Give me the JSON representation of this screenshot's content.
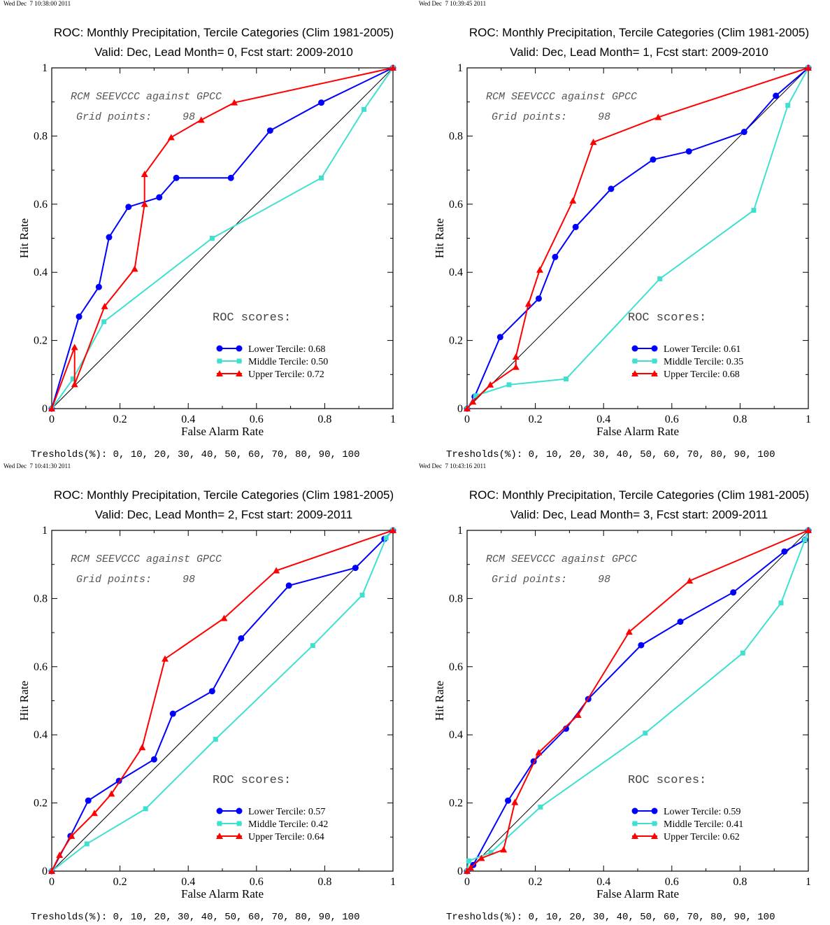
{
  "figure": {
    "threshold_text": "Tresholds(%): 0, 10, 20, 30, 40, 50, 60, 70, 80, 90, 100",
    "dataset_text": "RCM SEEVCCC against GPCC",
    "grid_label": "Grid points:",
    "grid_value": "98",
    "roc_scores_label": "ROC scores:",
    "series_colors": {
      "Lower Tercile": "#0000ff",
      "Middle Tercile": "#40e0d0",
      "Upper Tercile": "#ff0000"
    },
    "series_markers": {
      "Lower Tercile": "circle",
      "Middle Tercile": "square",
      "Upper Tercile": "triangle"
    }
  },
  "chart_data": [
    {
      "type": "line",
      "timestamp": "Wed Dec  7 10:38:00 2011",
      "title": "ROC: Monthly Precipitation, Tercile Categories (Clim 1981-2005)",
      "subtitle": "Valid: Dec, Lead Month= 0, Fcst start: 2009-2010",
      "xlabel": "False Alarm Rate",
      "ylabel": "Hit Rate",
      "xlim": [
        0,
        1
      ],
      "ylim": [
        0,
        1
      ],
      "xticks": [
        "0",
        "0.2",
        "0.4",
        "0.6",
        "0.8",
        "1"
      ],
      "yticks": [
        "0",
        "0.2",
        "0.4",
        "0.6",
        "0.8",
        "1"
      ],
      "grid": false,
      "diagonal": true,
      "legend_placement": "lower-right",
      "series": [
        {
          "name": "Lower Tercile",
          "score": "0.68",
          "points": [
            [
              1,
              1
            ],
            [
              0.79,
              0.898
            ],
            [
              0.64,
              0.816
            ],
            [
              0.525,
              0.677
            ],
            [
              0.365,
              0.677
            ],
            [
              0.315,
              0.62
            ],
            [
              0.225,
              0.592
            ],
            [
              0.168,
              0.503
            ],
            [
              0.138,
              0.357
            ],
            [
              0.08,
              0.27
            ],
            [
              0,
              0
            ]
          ]
        },
        {
          "name": "Middle Tercile",
          "score": "0.50",
          "points": [
            [
              1,
              1
            ],
            [
              0.915,
              0.878
            ],
            [
              0.79,
              0.677
            ],
            [
              0.47,
              0.5
            ],
            [
              0.153,
              0.255
            ],
            [
              0.062,
              0.087
            ],
            [
              0,
              0
            ]
          ]
        },
        {
          "name": "Upper Tercile",
          "score": "0.72",
          "points": [
            [
              1,
              1
            ],
            [
              0.535,
              0.898
            ],
            [
              0.438,
              0.847
            ],
            [
              0.35,
              0.796
            ],
            [
              0.272,
              0.688
            ],
            [
              0.272,
              0.6
            ],
            [
              0.243,
              0.41
            ],
            [
              0.155,
              0.3
            ],
            [
              0.067,
              0.071
            ],
            [
              0.067,
              0.18
            ],
            [
              0,
              0
            ]
          ]
        }
      ]
    },
    {
      "type": "line",
      "timestamp": "Wed Dec  7 10:39:45 2011",
      "title": "ROC: Monthly Precipitation, Tercile Categories (Clim 1981-2005)",
      "subtitle": "Valid: Dec, Lead Month= 1, Fcst start: 2009-2010",
      "xlabel": "False Alarm Rate",
      "ylabel": "Hit Rate",
      "xlim": [
        0,
        1
      ],
      "ylim": [
        0,
        1
      ],
      "xticks": [
        "0",
        "0.2",
        "0.4",
        "0.6",
        "0.8",
        "1"
      ],
      "yticks": [
        "0",
        "0.2",
        "0.4",
        "0.6",
        "0.8",
        "1"
      ],
      "grid": false,
      "diagonal": true,
      "legend_placement": "lower-right",
      "series": [
        {
          "name": "Lower Tercile",
          "score": "0.61",
          "points": [
            [
              1,
              1
            ],
            [
              0.905,
              0.918
            ],
            [
              0.812,
              0.812
            ],
            [
              0.65,
              0.755
            ],
            [
              0.545,
              0.731
            ],
            [
              0.422,
              0.645
            ],
            [
              0.318,
              0.533
            ],
            [
              0.258,
              0.445
            ],
            [
              0.21,
              0.323
            ],
            [
              0.097,
              0.21
            ],
            [
              0.022,
              0.035
            ],
            [
              0,
              0
            ]
          ]
        },
        {
          "name": "Middle Tercile",
          "score": "0.35",
          "points": [
            [
              1,
              1
            ],
            [
              0.94,
              0.89
            ],
            [
              0.84,
              0.582
            ],
            [
              0.565,
              0.381
            ],
            [
              0.29,
              0.087
            ],
            [
              0.123,
              0.07
            ],
            [
              0.025,
              0.038
            ],
            [
              0,
              0
            ]
          ]
        },
        {
          "name": "Upper Tercile",
          "score": "0.68",
          "points": [
            [
              1,
              1
            ],
            [
              0.56,
              0.855
            ],
            [
              0.37,
              0.782
            ],
            [
              0.31,
              0.61
            ],
            [
              0.213,
              0.407
            ],
            [
              0.18,
              0.307
            ],
            [
              0.143,
              0.152
            ],
            [
              0.143,
              0.122
            ],
            [
              0.068,
              0.07
            ],
            [
              0.017,
              0.02
            ],
            [
              0,
              0
            ]
          ]
        }
      ]
    },
    {
      "type": "line",
      "timestamp": "Wed Dec  7 10:41:30 2011",
      "title": "ROC: Monthly Precipitation, Tercile Categories (Clim 1981-2005)",
      "subtitle": "Valid: Dec, Lead Month= 2, Fcst start: 2009-2011",
      "xlabel": "False Alarm Rate",
      "ylabel": "Hit Rate",
      "xlim": [
        0,
        1
      ],
      "ylim": [
        0,
        1
      ],
      "xticks": [
        "0",
        "0.2",
        "0.4",
        "0.6",
        "0.8",
        "1"
      ],
      "yticks": [
        "0",
        "0.2",
        "0.4",
        "0.6",
        "0.8",
        "1"
      ],
      "grid": false,
      "diagonal": true,
      "legend_placement": "lower-right",
      "series": [
        {
          "name": "Lower Tercile",
          "score": "0.57",
          "points": [
            [
              1,
              1
            ],
            [
              0.975,
              0.975
            ],
            [
              0.89,
              0.89
            ],
            [
              0.695,
              0.838
            ],
            [
              0.555,
              0.683
            ],
            [
              0.47,
              0.528
            ],
            [
              0.355,
              0.462
            ],
            [
              0.3,
              0.328
            ],
            [
              0.197,
              0.265
            ],
            [
              0.107,
              0.207
            ],
            [
              0.055,
              0.103
            ],
            [
              0,
              0
            ]
          ]
        },
        {
          "name": "Middle Tercile",
          "score": "0.42",
          "points": [
            [
              1,
              1
            ],
            [
              0.98,
              0.978
            ],
            [
              0.91,
              0.81
            ],
            [
              0.765,
              0.662
            ],
            [
              0.48,
              0.387
            ],
            [
              0.275,
              0.183
            ],
            [
              0.103,
              0.08
            ],
            [
              0,
              0
            ]
          ]
        },
        {
          "name": "Upper Tercile",
          "score": "0.64",
          "points": [
            [
              1,
              1
            ],
            [
              0.658,
              0.882
            ],
            [
              0.505,
              0.742
            ],
            [
              0.332,
              0.623
            ],
            [
              0.265,
              0.363
            ],
            [
              0.175,
              0.227
            ],
            [
              0.125,
              0.17
            ],
            [
              0.058,
              0.103
            ],
            [
              0.023,
              0.047
            ],
            [
              0,
              0
            ]
          ]
        }
      ]
    },
    {
      "type": "line",
      "timestamp": "Wed Dec  7 10:43:16 2011",
      "title": "ROC: Monthly Precipitation, Tercile Categories (Clim 1981-2005)",
      "subtitle": "Valid: Dec, Lead Month= 3, Fcst start: 2009-2011",
      "xlabel": "False Alarm Rate",
      "ylabel": "Hit Rate",
      "xlim": [
        0,
        1
      ],
      "ylim": [
        0,
        1
      ],
      "xticks": [
        "0",
        "0.2",
        "0.4",
        "0.6",
        "0.8",
        "1"
      ],
      "yticks": [
        "0",
        "0.2",
        "0.4",
        "0.6",
        "0.8",
        "1"
      ],
      "grid": false,
      "diagonal": true,
      "legend_placement": "lower-right",
      "series": [
        {
          "name": "Lower Tercile",
          "score": "0.59",
          "points": [
            [
              1,
              1
            ],
            [
              0.99,
              0.972
            ],
            [
              0.93,
              0.938
            ],
            [
              0.78,
              0.818
            ],
            [
              0.625,
              0.732
            ],
            [
              0.51,
              0.663
            ],
            [
              0.355,
              0.505
            ],
            [
              0.29,
              0.418
            ],
            [
              0.195,
              0.322
            ],
            [
              0.12,
              0.207
            ],
            [
              0.018,
              0.018
            ],
            [
              0,
              0
            ]
          ]
        },
        {
          "name": "Middle Tercile",
          "score": "0.41",
          "points": [
            [
              1,
              1
            ],
            [
              0.99,
              0.972
            ],
            [
              0.92,
              0.787
            ],
            [
              0.808,
              0.64
            ],
            [
              0.522,
              0.405
            ],
            [
              0.215,
              0.188
            ],
            [
              0.07,
              0.055
            ],
            [
              0.005,
              0.03
            ],
            [
              0,
              0
            ]
          ]
        },
        {
          "name": "Upper Tercile",
          "score": "0.62",
          "points": [
            [
              1,
              1
            ],
            [
              0.652,
              0.852
            ],
            [
              0.475,
              0.702
            ],
            [
              0.325,
              0.458
            ],
            [
              0.21,
              0.348
            ],
            [
              0.14,
              0.202
            ],
            [
              0.107,
              0.063
            ],
            [
              0.042,
              0.038
            ],
            [
              0.01,
              0.01
            ],
            [
              0,
              0
            ]
          ]
        }
      ]
    }
  ]
}
